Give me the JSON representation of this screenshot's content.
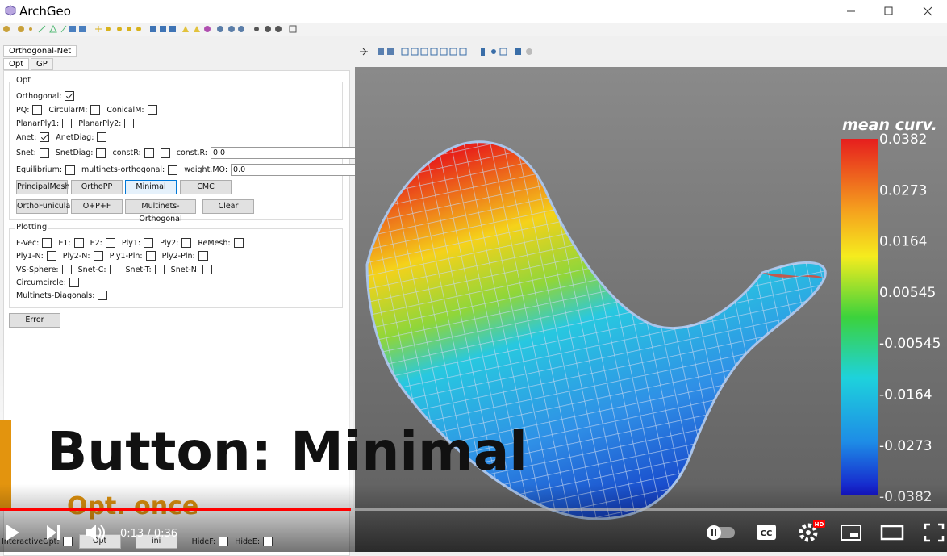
{
  "window": {
    "title": "ArchGeo"
  },
  "tabs": {
    "outer": "Orthogonal-Net",
    "inner": [
      "Opt",
      "GP"
    ]
  },
  "panel": {
    "opt": {
      "title": "Opt",
      "rows": [
        [
          {
            "label": "Orthogonal:",
            "checks": [
              true
            ]
          }
        ],
        [
          {
            "label": "PQ:",
            "checks": [
              false
            ]
          },
          {
            "label": "CircularM:",
            "checks": [
              false
            ]
          },
          {
            "label": "ConicalM:",
            "checks": [
              false
            ]
          }
        ],
        [
          {
            "label": "PlanarPly1:",
            "checks": [
              false
            ]
          },
          {
            "label": "PlanarPly2:",
            "checks": [
              false
            ]
          }
        ],
        [
          {
            "label": "Anet:",
            "checks": [
              true
            ]
          },
          {
            "label": "AnetDiag:",
            "checks": [
              false
            ]
          }
        ],
        [
          {
            "label": "Snet:",
            "checks": [
              false
            ]
          },
          {
            "label": "SnetDiag:",
            "checks": [
              false
            ]
          },
          {
            "label": "constR:",
            "checks": [
              false,
              false
            ]
          },
          {
            "label": "const.R:",
            "field": "0.0"
          }
        ],
        [
          {
            "label": "Equilibrium:",
            "checks": [
              false
            ]
          },
          {
            "label": "multinets-orthogonal:",
            "checks": [
              false
            ]
          },
          {
            "label": "weight.MO:",
            "field": "0.0"
          }
        ]
      ],
      "buttons": [
        [
          {
            "label": "PrincipalMesh"
          },
          {
            "label": "OrthoPP"
          },
          {
            "label": "Minimal",
            "hovered": true
          },
          {
            "label": "CMC"
          }
        ],
        [
          {
            "label": "OrthoFunicular"
          },
          {
            "label": "O+P+F"
          },
          {
            "label": "Multinets-Orthogonal"
          },
          {
            "label": "Clear"
          }
        ]
      ]
    },
    "plotting": {
      "title": "Plotting",
      "rows": [
        [
          {
            "label": "F-Vec:",
            "checks": [
              false
            ]
          },
          {
            "label": "E1:",
            "checks": [
              false
            ]
          },
          {
            "label": "E2:",
            "checks": [
              false
            ]
          },
          {
            "label": "Ply1:",
            "checks": [
              false
            ]
          },
          {
            "label": "Ply2:",
            "checks": [
              false
            ]
          },
          {
            "label": "ReMesh:",
            "checks": [
              false
            ]
          }
        ],
        [
          {
            "label": "Ply1-N:",
            "checks": [
              false
            ]
          },
          {
            "label": "Ply2-N:",
            "checks": [
              false
            ]
          },
          {
            "label": "Ply1-Pln:",
            "checks": [
              false
            ]
          },
          {
            "label": "Ply2-Pln:",
            "checks": [
              false
            ]
          }
        ],
        [
          {
            "label": "VS-Sphere:",
            "checks": [
              false
            ]
          },
          {
            "label": "Snet-C:",
            "checks": [
              false
            ]
          },
          {
            "label": "Snet-T:",
            "checks": [
              false
            ]
          },
          {
            "label": "Snet-N:",
            "checks": [
              false
            ]
          }
        ],
        [
          {
            "label": "Circumcircle:",
            "checks": [
              false
            ]
          }
        ],
        [
          {
            "label": "Multinets-Diagonals:",
            "checks": [
              false
            ]
          }
        ]
      ]
    },
    "error_button": "Error"
  },
  "viewer": {
    "colorbar": {
      "title": "mean curv.",
      "labels": [
        "0.0382",
        "0.0273",
        "0.0164",
        "0.00545",
        "-0.00545",
        "-0.0164",
        "-0.0273",
        "-0.0382"
      ]
    }
  },
  "overlay": {
    "caption": "Button: Minimal",
    "subcaption": "Opt. once"
  },
  "bottom_bar": {
    "items": [
      {
        "label": "InteractiveOpt:",
        "checks": [
          false
        ]
      },
      {
        "button": "Opt"
      },
      {
        "button": "ini"
      },
      {
        "label": "HideF:",
        "checks": [
          false
        ]
      },
      {
        "label": "HideE:",
        "checks": [
          false
        ]
      }
    ]
  },
  "player": {
    "time": "0:13 / 0:36",
    "cc": "CC",
    "quality": "HD"
  }
}
